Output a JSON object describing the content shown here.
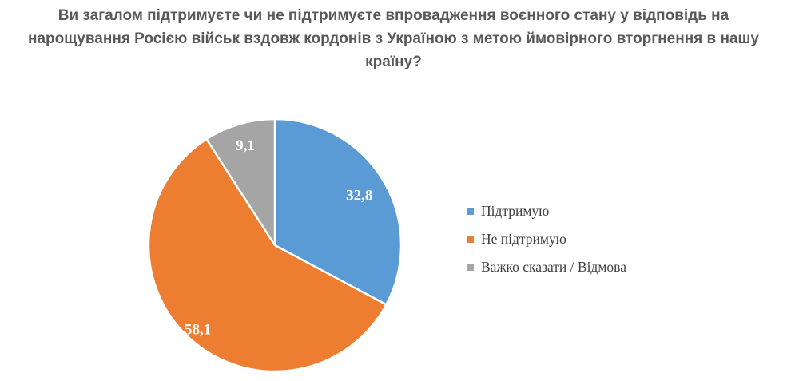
{
  "title": "Ви загалом підтримуєте чи не підтримуєте впровадження воєнного стану у відповідь на нарощування Росією військ вздовж кордонів з Україною з метою ймовірного вторгнення в нашу країну?",
  "colors": {
    "background": "#ffffff",
    "title_text": "#595959",
    "legend_text": "#404040",
    "data_label_text": "#ffffff",
    "slice_border": "#ffffff"
  },
  "chart_data": {
    "type": "pie",
    "labels": [
      "Підтримую",
      "Не підтримую",
      "Важко сказати / Відмова"
    ],
    "values": [
      32.8,
      58.1,
      9.1
    ],
    "value_labels": [
      "32,8",
      "58,1",
      "9,1"
    ],
    "slice_colors": [
      "#5B9BD5",
      "#ED7D31",
      "#A5A5A5"
    ],
    "start_angle_deg": 0,
    "direction": "clockwise",
    "legend_position": "right",
    "label_radius_factors": [
      0.78,
      0.9,
      0.83
    ]
  }
}
